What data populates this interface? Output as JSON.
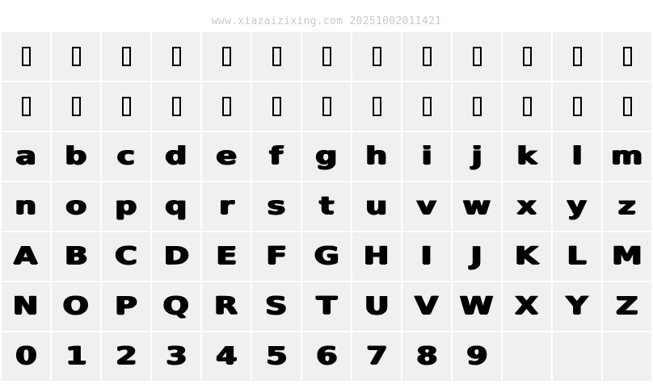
{
  "header": {
    "watermark": "www.xiazaizixing.com 20251002011421"
  },
  "colors": {
    "cell_bg": "#f0f0f0",
    "glyph": "#000000",
    "watermark": "#c8c8c8"
  },
  "grid": {
    "columns": 13,
    "rows": [
      {
        "type": "missing-glyph",
        "chars": [
          "",
          "",
          "",
          "",
          "",
          "",
          "",
          "",
          "",
          "",
          "",
          "",
          ""
        ]
      },
      {
        "type": "missing-glyph",
        "chars": [
          "",
          "",
          "",
          "",
          "",
          "",
          "",
          "",
          "",
          "",
          "",
          "",
          ""
        ]
      },
      {
        "type": "glyph",
        "chars": [
          "a",
          "b",
          "c",
          "d",
          "e",
          "f",
          "g",
          "h",
          "i",
          "j",
          "k",
          "l",
          "m"
        ]
      },
      {
        "type": "glyph",
        "chars": [
          "n",
          "o",
          "p",
          "q",
          "r",
          "s",
          "t",
          "u",
          "v",
          "w",
          "x",
          "y",
          "z"
        ]
      },
      {
        "type": "glyph",
        "chars": [
          "A",
          "B",
          "C",
          "D",
          "E",
          "F",
          "G",
          "H",
          "I",
          "J",
          "K",
          "L",
          "M"
        ]
      },
      {
        "type": "glyph",
        "chars": [
          "N",
          "O",
          "P",
          "Q",
          "R",
          "S",
          "T",
          "U",
          "V",
          "W",
          "X",
          "Y",
          "Z"
        ]
      },
      {
        "type": "glyph",
        "chars": [
          "0",
          "1",
          "2",
          "3",
          "4",
          "5",
          "6",
          "7",
          "8",
          "9"
        ]
      }
    ]
  }
}
